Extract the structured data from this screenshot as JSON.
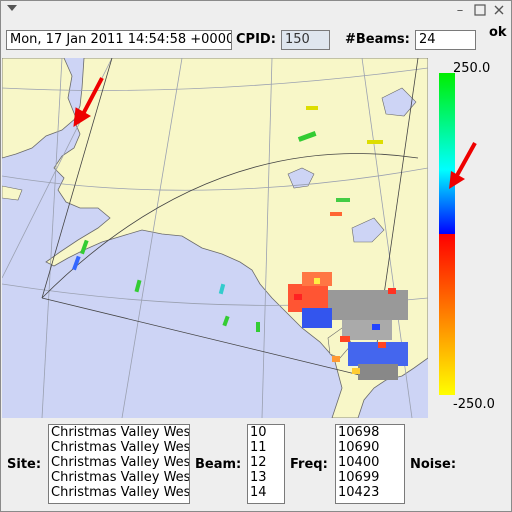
{
  "window": {
    "menu_icon": "dropdown-triangle-icon",
    "minimize_icon": "minimize-icon",
    "maximize_icon": "maximize-icon",
    "close_icon": "close-icon"
  },
  "toolbar": {
    "datetime": "Mon, 17 Jan 2011 14:54:58 +0000",
    "cpid_label": "CPID:",
    "cpid_value": "150",
    "beams_label": "#Beams:",
    "beams_value": "24",
    "ok_label": "ok"
  },
  "colorbar": {
    "max_label": "250.0",
    "min_label": "-250.0",
    "colors": [
      "#00ee00",
      "#00ffff",
      "#0000ff",
      "#ff0000",
      "#ffff00"
    ]
  },
  "bottom": {
    "site_label": "Site:",
    "sites": [
      "Christmas Valley West",
      "Christmas Valley West",
      "Christmas Valley West",
      "Christmas Valley West",
      "Christmas Valley West"
    ],
    "beam_label": "Beam:",
    "beams": [
      "10",
      "11",
      "12",
      "13",
      "14"
    ],
    "freq_label": "Freq:",
    "freqs": [
      "10698",
      "10690",
      "10400",
      "10699",
      "10423"
    ],
    "noise_label": "Noise:"
  },
  "map": {
    "ocean_color": "#cdd4f5",
    "land_color": "#f8f7c8",
    "annotation_color": "#ee0000"
  }
}
